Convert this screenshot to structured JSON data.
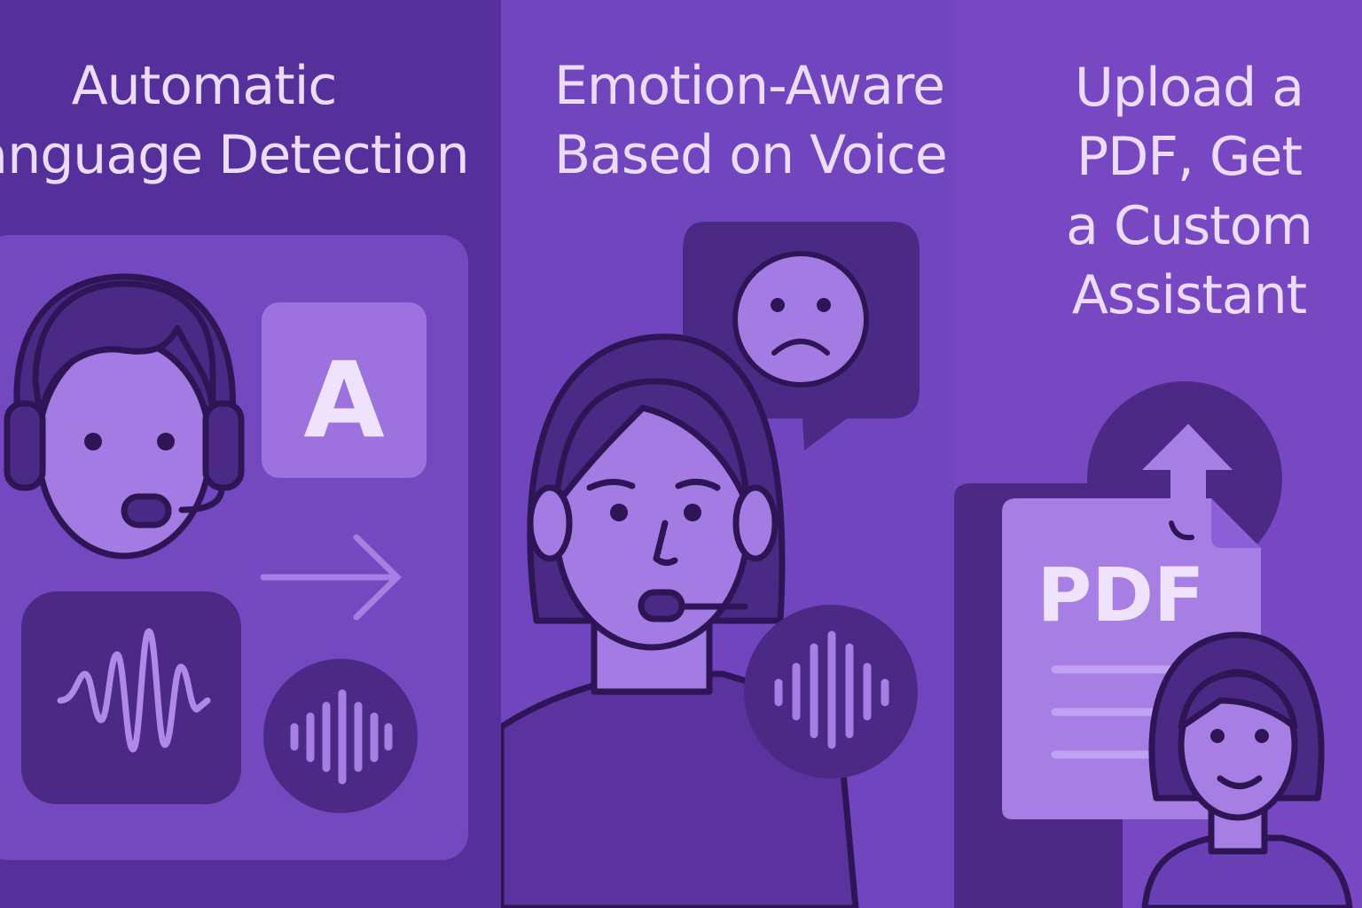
{
  "left_panel": {
    "heading_lines": [
      "Automatic",
      "Language Detection"
    ],
    "letter_tile": "A"
  },
  "middle_panel": {
    "heading_lines": [
      "Emotion-Aware",
      "Based on Voice"
    ]
  },
  "right_panel": {
    "heading_lines": [
      "Upload a",
      "PDF, Get",
      "a Custom",
      "Assistant"
    ],
    "document_label": "PDF"
  },
  "icons": [
    "headset-agent-icon",
    "letter-a-icon",
    "arrow-right-icon",
    "waveform-icon",
    "voice-bars-icon",
    "sad-face-icon",
    "speech-bubble-icon",
    "upload-arrow-icon",
    "pdf-document-icon",
    "assistant-avatar-icon"
  ],
  "colors": {
    "background": "#6a3fb6",
    "dark_panel": "#55309a",
    "dark_shape": "#4b2a86",
    "light_fill": "#a77ee4",
    "heading_text": "#ecdcfb",
    "outline": "#2e1656"
  }
}
